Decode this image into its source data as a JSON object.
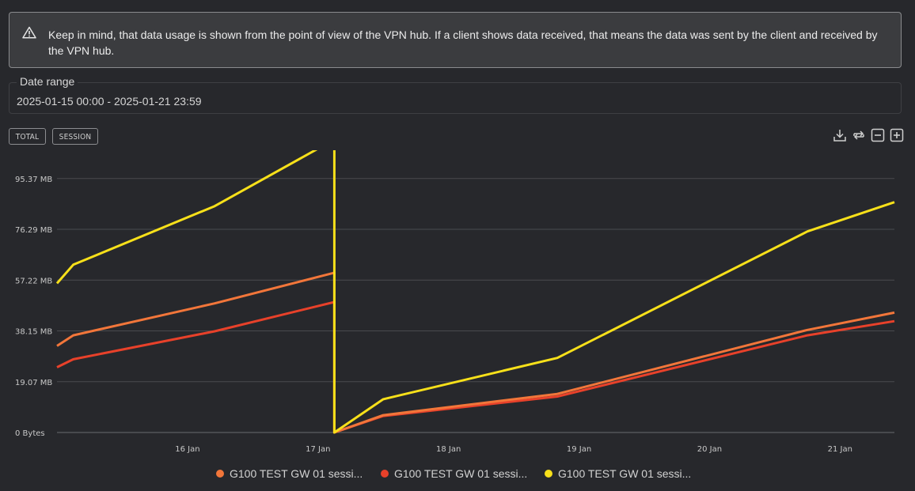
{
  "notice": {
    "icon": "warning-triangle-icon",
    "text": "Keep in mind, that data usage is shown from the point of view of the VPN hub. If a client shows data received, that means the data was sent by the client and received by the VPN hub."
  },
  "date_range": {
    "label": "Date range",
    "value": "2025-01-15 00:00 - 2025-01-21 23:59"
  },
  "toggles": {
    "total": "TOTAL",
    "session": "SESSION"
  },
  "toolbar": {
    "download": "download-icon",
    "reset": "reset-icon",
    "zoom_out": "zoom-out-icon",
    "zoom_in": "zoom-in-icon"
  },
  "chart_data": {
    "type": "line",
    "x_range": [
      "2025-01-15T00:00",
      "2025-01-21T10:00"
    ],
    "ylim_mb": [
      0,
      106
    ],
    "y_ticks": [
      {
        "label": "0 Bytes",
        "value": 0
      },
      {
        "label": "19.07 MB",
        "value": 19.07
      },
      {
        "label": "38.15 MB",
        "value": 38.15
      },
      {
        "label": "57.22 MB",
        "value": 57.22
      },
      {
        "label": "76.29 MB",
        "value": 76.29
      },
      {
        "label": "95.37 MB",
        "value": 95.37
      }
    ],
    "x_ticks": [
      {
        "label": "16 Jan",
        "value": "2025-01-16T00:00"
      },
      {
        "label": "17 Jan",
        "value": "2025-01-17T00:00"
      },
      {
        "label": "18 Jan",
        "value": "2025-01-18T00:00"
      },
      {
        "label": "19 Jan",
        "value": "2025-01-19T00:00"
      },
      {
        "label": "20 Jan",
        "value": "2025-01-20T00:00"
      },
      {
        "label": "21 Jan",
        "value": "2025-01-21T00:00"
      }
    ],
    "grid": true,
    "legend": "bottom",
    "series": [
      {
        "name": "G100 TEST GW 01 sessi...",
        "color": "#f2763a",
        "points": [
          [
            "2025-01-15T00:00",
            32.5
          ],
          [
            "2025-01-15T03:00",
            36.5
          ],
          [
            "2025-01-16T05:00",
            48.5
          ],
          [
            "2025-01-17T03:00",
            60.0
          ],
          [
            "2025-01-17T03:00",
            0
          ],
          [
            "2025-01-17T12:00",
            6.5
          ],
          [
            "2025-01-18T20:00",
            14.5
          ],
          [
            "2025-01-20T18:00",
            38.5
          ],
          [
            "2025-01-21T10:00",
            45.0
          ]
        ]
      },
      {
        "name": "G100 TEST GW 01 sessi...",
        "color": "#e8412a",
        "points": [
          [
            "2025-01-15T00:00",
            24.5
          ],
          [
            "2025-01-15T03:00",
            27.5
          ],
          [
            "2025-01-16T05:00",
            38.0
          ],
          [
            "2025-01-17T03:00",
            49.0
          ],
          [
            "2025-01-17T03:00",
            0
          ],
          [
            "2025-01-17T12:00",
            6.2
          ],
          [
            "2025-01-18T20:00",
            13.5
          ],
          [
            "2025-01-20T18:00",
            36.5
          ],
          [
            "2025-01-21T10:00",
            41.8
          ]
        ]
      },
      {
        "name": "G100 TEST GW 01 sessi...",
        "color": "#f7e01a",
        "points": [
          [
            "2025-01-15T00:00",
            56.0
          ],
          [
            "2025-01-15T03:00",
            63.0
          ],
          [
            "2025-01-16T05:00",
            85.0
          ],
          [
            "2025-01-17T03:00",
            110.0
          ],
          [
            "2025-01-17T03:00",
            0
          ],
          [
            "2025-01-17T12:00",
            12.5
          ],
          [
            "2025-01-18T20:00",
            28.0
          ],
          [
            "2025-01-20T18:00",
            75.5
          ],
          [
            "2025-01-21T10:00",
            86.5
          ]
        ]
      }
    ]
  }
}
